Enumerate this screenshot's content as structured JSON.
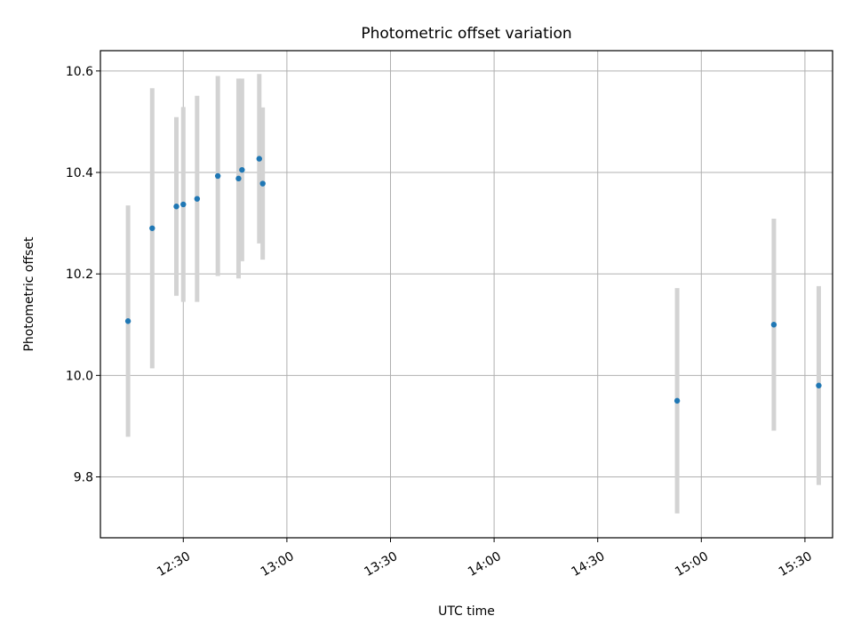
{
  "chart_data": {
    "type": "scatter",
    "title": "Photometric offset variation",
    "xlabel": "UTC time",
    "ylabel": "Photometric offset",
    "x_ticks": [
      "12:30",
      "13:00",
      "13:30",
      "14:00",
      "14:30",
      "15:00",
      "15:30"
    ],
    "y_ticks": [
      "9.8",
      "10.0",
      "10.2",
      "10.4",
      "10.6"
    ],
    "xlim": [
      "12:06",
      "15:38"
    ],
    "ylim": [
      9.68,
      10.64
    ],
    "grid": true,
    "point_color": "#1f77b4",
    "errorbar_color": "#d3d3d3",
    "points": [
      {
        "time": "12:14",
        "y": 10.107,
        "err": 0.228
      },
      {
        "time": "12:21",
        "y": 10.29,
        "err": 0.276
      },
      {
        "time": "12:28",
        "y": 10.333,
        "err": 0.176
      },
      {
        "time": "12:30",
        "y": 10.337,
        "err": 0.192
      },
      {
        "time": "12:34",
        "y": 10.348,
        "err": 0.203
      },
      {
        "time": "12:40",
        "y": 10.393,
        "err": 0.197
      },
      {
        "time": "12:46",
        "y": 10.388,
        "err": 0.197
      },
      {
        "time": "12:47",
        "y": 10.405,
        "err": 0.18
      },
      {
        "time": "12:52",
        "y": 10.427,
        "err": 0.167
      },
      {
        "time": "12:53",
        "y": 10.378,
        "err": 0.15
      },
      {
        "time": "14:53",
        "y": 9.95,
        "err": 0.222
      },
      {
        "time": "15:21",
        "y": 10.1,
        "err": 0.209
      },
      {
        "time": "15:34",
        "y": 9.98,
        "err": 0.196
      }
    ]
  }
}
